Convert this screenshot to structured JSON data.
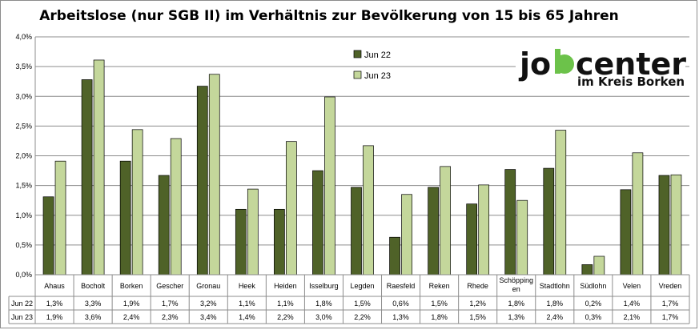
{
  "chart_data": {
    "type": "bar",
    "title": "Arbeitslose (nur SGB II) im Verhältnis zur Bevölkerung von 15 bis 65 Jahren",
    "categories": [
      "Ahaus",
      "Bocholt",
      "Borken",
      "Gescher",
      "Gronau",
      "Heek",
      "Heiden",
      "Isselburg",
      "Legden",
      "Raesfeld",
      "Reken",
      "Rhede",
      "Schöpping en",
      "Stadtlohn",
      "Südlohn",
      "Velen",
      "Vreden"
    ],
    "series": [
      {
        "name": "Jun 22",
        "color": "#4f6228",
        "values": [
          1.31,
          3.28,
          1.91,
          1.67,
          3.17,
          1.1,
          1.1,
          1.75,
          1.47,
          0.63,
          1.47,
          1.19,
          1.77,
          1.79,
          0.17,
          1.43,
          1.67
        ],
        "labels": [
          "1,3%",
          "3,3%",
          "1,9%",
          "1,7%",
          "3,2%",
          "1,1%",
          "1,1%",
          "1,8%",
          "1,5%",
          "0,6%",
          "1,5%",
          "1,2%",
          "1,8%",
          "1,8%",
          "0,2%",
          "1,4%",
          "1,7%"
        ]
      },
      {
        "name": "Jun 23",
        "color": "#c4d79b",
        "values": [
          1.91,
          3.61,
          2.44,
          2.29,
          3.37,
          1.44,
          2.24,
          2.99,
          2.17,
          1.35,
          1.82,
          1.51,
          1.25,
          2.43,
          0.31,
          2.05,
          1.68
        ],
        "labels": [
          "1,9%",
          "3,6%",
          "2,4%",
          "2,3%",
          "3,4%",
          "1,4%",
          "2,2%",
          "3,0%",
          "2,2%",
          "1,3%",
          "1,8%",
          "1,5%",
          "1,3%",
          "2,4%",
          "0,3%",
          "2,1%",
          "1,7%"
        ]
      }
    ],
    "yticks": [
      "0,0%",
      "0,5%",
      "1,0%",
      "1,5%",
      "2,0%",
      "2,5%",
      "3,0%",
      "3,5%",
      "4,0%"
    ],
    "ylim": [
      0,
      4.0
    ],
    "grid": true,
    "legend_position": "top-center",
    "data_table": true
  },
  "logo": {
    "text_jo": "jo",
    "text_b": "b",
    "text_center": "center",
    "subtitle": "im Kreis Borken",
    "accent": "#6cc24a"
  }
}
